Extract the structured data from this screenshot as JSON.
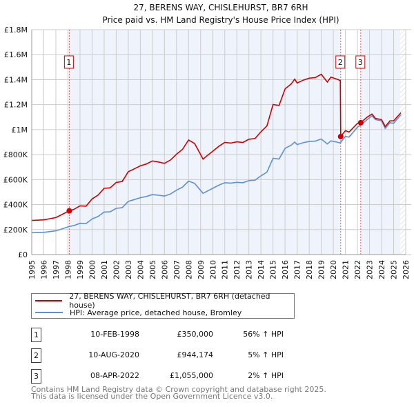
{
  "chart_data": {
    "type": "line",
    "title": "27, BERENS WAY, CHISLEHURST, BR7 6RH",
    "subtitle": "Price paid vs. HM Land Registry's House Price Index (HPI)",
    "xlim": [
      1995,
      2026
    ],
    "ylim": [
      0,
      1800000
    ],
    "x_ticks": [
      "1995",
      "1996",
      "1997",
      "1998",
      "1999",
      "2000",
      "2001",
      "2002",
      "2003",
      "2004",
      "2005",
      "2006",
      "2007",
      "2008",
      "2009",
      "2010",
      "2011",
      "2012",
      "2013",
      "2014",
      "2015",
      "2016",
      "2017",
      "2018",
      "2019",
      "2020",
      "2021",
      "2022",
      "2023",
      "2024",
      "2025",
      "2026"
    ],
    "y_ticks": [
      {
        "value": 0,
        "label": "£0"
      },
      {
        "value": 200000,
        "label": "£200K"
      },
      {
        "value": 400000,
        "label": "£400K"
      },
      {
        "value": 600000,
        "label": "£600K"
      },
      {
        "value": 800000,
        "label": "£800K"
      },
      {
        "value": 1000000,
        "label": "£1M"
      },
      {
        "value": 1200000,
        "label": "£1.2M"
      },
      {
        "value": 1400000,
        "label": "£1.4M"
      },
      {
        "value": 1600000,
        "label": "£1.6M"
      },
      {
        "value": 1800000,
        "label": "£1.8M"
      }
    ],
    "grid": true,
    "series": [
      {
        "name": "27, BERENS WAY, CHISLEHURST, BR7 6RH (detached house)",
        "color": "#cc0000",
        "x": [
          1995,
          1996,
          1997,
          1997.5,
          1998.11,
          1998.5,
          1999,
          1999.5,
          2000,
          2000.5,
          2001,
          2001.5,
          2002,
          2002.5,
          2003,
          2003.5,
          2004,
          2004.5,
          2005,
          2005.5,
          2006,
          2006.5,
          2007,
          2007.5,
          2008,
          2008.5,
          2009.2,
          2009.6,
          2010,
          2010.5,
          2011,
          2011.5,
          2012,
          2012.5,
          2013,
          2013.5,
          2014,
          2014.5,
          2015,
          2015.5,
          2016,
          2016.5,
          2016.8,
          2017,
          2017.5,
          2018,
          2018.5,
          2019,
          2019.5,
          2019.8,
          2020.3,
          2020.58,
          2020.61,
          2021,
          2021.3,
          2022,
          2022.27,
          2022.8,
          2023.2,
          2023.5,
          2024,
          2024.3,
          2024.7,
          2025,
          2025.6
        ],
        "y": [
          273000,
          278000,
          296000,
          320000,
          350000,
          362000,
          390000,
          387000,
          445000,
          476000,
          530000,
          534000,
          577000,
          585000,
          663000,
          686000,
          710000,
          725000,
          749000,
          741000,
          730000,
          757000,
          803000,
          842000,
          917000,
          889000,
          764000,
          796000,
          827000,
          866000,
          897000,
          892000,
          902000,
          897000,
          923000,
          928000,
          983000,
          1030000,
          1201000,
          1193000,
          1326000,
          1365000,
          1404000,
          1373000,
          1396000,
          1412000,
          1416000,
          1443000,
          1381000,
          1420000,
          1404000,
          1393000,
          944174,
          992000,
          980000,
          1050000,
          1055000,
          1100000,
          1125000,
          1090000,
          1080000,
          1025000,
          1070000,
          1070000,
          1135000
        ]
      },
      {
        "name": "HPI: Average price, detached house, Bromley",
        "color": "#5b8fd6",
        "x": [
          1995,
          1996,
          1997,
          1997.5,
          1998.11,
          1998.5,
          1999,
          1999.5,
          2000,
          2000.5,
          2001,
          2001.5,
          2002,
          2002.5,
          2003,
          2003.5,
          2004,
          2004.5,
          2005,
          2005.5,
          2006,
          2006.5,
          2007,
          2007.5,
          2008,
          2008.5,
          2009.2,
          2009.6,
          2010,
          2010.5,
          2011,
          2011.5,
          2012,
          2012.5,
          2013,
          2013.5,
          2014,
          2014.5,
          2015,
          2015.5,
          2016,
          2016.5,
          2016.8,
          2017,
          2017.5,
          2018,
          2018.5,
          2019,
          2019.5,
          2019.8,
          2020.3,
          2020.58,
          2020.61,
          2021,
          2021.3,
          2022,
          2022.27,
          2022.8,
          2023.2,
          2023.5,
          2024,
          2024.3,
          2024.7,
          2025,
          2025.6
        ],
        "y": [
          175000,
          178000,
          190000,
          205000,
          225000,
          232000,
          250000,
          248000,
          285000,
          305000,
          340000,
          342000,
          370000,
          375000,
          425000,
          440000,
          455000,
          465000,
          480000,
          475000,
          468000,
          485000,
          515000,
          540000,
          588000,
          570000,
          490000,
          510000,
          530000,
          555000,
          575000,
          572000,
          578000,
          575000,
          592000,
          595000,
          630000,
          660000,
          770000,
          765000,
          850000,
          875000,
          900000,
          880000,
          895000,
          905000,
          908000,
          925000,
          885000,
          910000,
          900000,
          893000,
          899000,
          945000,
          940000,
          1020000,
          1035000,
          1080000,
          1110000,
          1080000,
          1070000,
          1010000,
          1055000,
          1050000,
          1120000
        ]
      }
    ],
    "sales": [
      {
        "label": "1",
        "x": 1998.11,
        "y": 350000,
        "date": "10-FEB-1998",
        "price": "£350,000",
        "hpi": "56% ↑ HPI"
      },
      {
        "label": "2",
        "x": 2020.61,
        "y": 944174,
        "date": "10-AUG-2020",
        "price": "£944,174",
        "hpi": "5% ↑ HPI"
      },
      {
        "label": "3",
        "x": 2022.27,
        "y": 1055000,
        "date": "08-APR-2022",
        "price": "£1,055,000",
        "hpi": "2% ↑ HPI"
      }
    ],
    "legend_placement": "bottom"
  },
  "footer": {
    "line1": "Contains HM Land Registry data © Crown copyright and database right 2025.",
    "line2": "This data is licensed under the Open Government Licence v3.0."
  }
}
